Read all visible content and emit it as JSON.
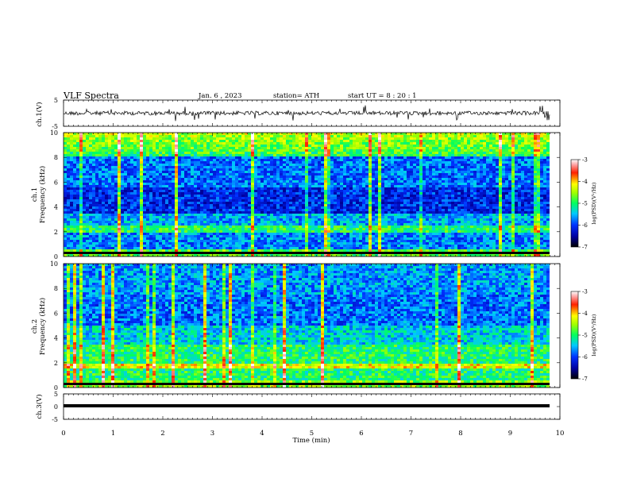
{
  "header": {
    "title": "VLF  Spectra",
    "date": "Jan.  6  , 2023",
    "station": "station= ATH",
    "start": "start  UT  =   8  : 20 : 1"
  },
  "panels": {
    "ch1_wave_label": "ch.1(V)",
    "ch3_wave_label": "ch.3(V)",
    "ch1_spec_label": "ch.1\nFrequency  (kHz)",
    "ch2_spec_label": "ch.2\nFrequency  (kHz)",
    "colorbar_label": "log(PSD)(V²/Hz)"
  },
  "chart_data": [
    {
      "type": "line",
      "name": "ch1-waveform",
      "ylabel": "ch.1(V)",
      "ylim": [
        -5,
        5
      ],
      "xlim": [
        0,
        10
      ],
      "y_ticks": [
        5,
        -5
      ]
    },
    {
      "type": "heatmap",
      "name": "ch1-spectrogram",
      "ylabel": "ch.1 Frequency  (kHz)",
      "ylim": [
        0,
        10
      ],
      "y_ticks": [
        0,
        2,
        4,
        6,
        8,
        10
      ],
      "colorbar": {
        "label": "log(PSD)(V²/Hz)",
        "range": [
          -7,
          -3
        ],
        "ticks": [
          -3,
          -4,
          -5,
          -6,
          -7
        ]
      }
    },
    {
      "type": "heatmap",
      "name": "ch2-spectrogram",
      "ylabel": "ch.2 Frequency  (kHz)",
      "ylim": [
        0,
        10
      ],
      "y_ticks": [
        0,
        2,
        4,
        6,
        8,
        10
      ],
      "colorbar": {
        "label": "log(PSD)(V²/Hz)",
        "range": [
          -7,
          -3
        ],
        "ticks": [
          -3,
          -4,
          -5,
          -6,
          -7
        ]
      }
    },
    {
      "type": "line",
      "name": "ch3-waveform",
      "ylabel": "ch.3(V)",
      "ylim": [
        -5,
        5
      ],
      "y_ticks": [
        5,
        0,
        -5
      ]
    }
  ],
  "x_axis": {
    "label": "Time  (min)",
    "range": [
      0,
      10
    ],
    "ticks": [
      "0",
      "1",
      "2",
      "3",
      "4",
      "5",
      "6",
      "7",
      "8",
      "9",
      "10"
    ]
  },
  "colors": {
    "frame": "#000000",
    "background": "#ffffff"
  }
}
